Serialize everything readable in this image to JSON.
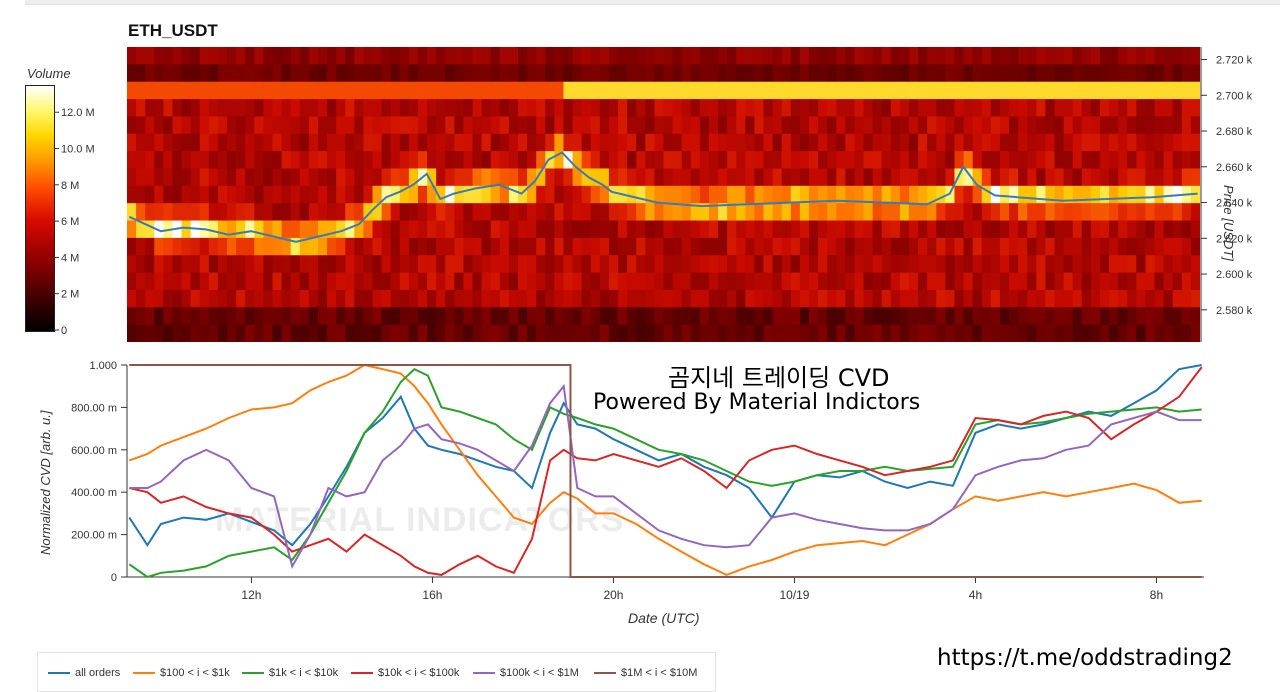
{
  "title": "ETH_USDT",
  "colorbar": {
    "title": "Volume",
    "ticks": [
      "0",
      "2 M",
      "4 M",
      "6 M",
      "8 M",
      "10.0 M",
      "12.0 M"
    ],
    "tick_values": [
      0,
      2,
      4,
      6,
      8,
      10,
      12
    ],
    "max": 13.5
  },
  "price_axis": {
    "label": "Price [USDT]",
    "ticks": [
      "2.580 k",
      "2.600 k",
      "2.620 k",
      "2.640 k",
      "2.660 k",
      "2.680 k",
      "2.700 k",
      "2.720 k"
    ],
    "tick_values": [
      2580,
      2600,
      2620,
      2640,
      2660,
      2680,
      2700,
      2720
    ],
    "range": [
      2562,
      2727
    ]
  },
  "cvd_axis": {
    "label": "Normalized CVD [arb. u.]",
    "ticks": [
      "0",
      "200.00 m",
      "400.00 m",
      "600.00 m",
      "800.00 m",
      "1.000"
    ],
    "tick_values": [
      0,
      0.2,
      0.4,
      0.6,
      0.8,
      1.0
    ]
  },
  "x_axis": {
    "label": "Date (UTC)",
    "ticks": [
      "12h",
      "16h",
      "20h",
      "10/19",
      "4h",
      "8h"
    ],
    "tick_hours": [
      12,
      16,
      20,
      24,
      28,
      32
    ],
    "range_hours": [
      9.25,
      33.05
    ]
  },
  "overlay": {
    "line1": "곰지네 트레이딩 CVD",
    "line2": "Powered By Material Indictors"
  },
  "watermark": "MATERIAL INDICATORS",
  "url": "https://t.me/oddstrading2",
  "legend": [
    {
      "name": "all orders",
      "color": "#1f77b4"
    },
    {
      "name": "$100 < i < $1k",
      "color": "#ff7f0e"
    },
    {
      "name": "$1k < i < $10k",
      "color": "#2ca02c"
    },
    {
      "name": "$10k < i < $100k",
      "color": "#d62728"
    },
    {
      "name": "$100k < i < $1M",
      "color": "#9467bd"
    },
    {
      "name": "$1M < i < $10M",
      "color": "#8c564b"
    }
  ],
  "chart_data": [
    {
      "type": "heatmap",
      "title": "ETH_USDT",
      "ylabel": "Price [USDT]",
      "ylim": [
        2562,
        2727
      ],
      "colorbar_label": "Volume",
      "price_line": {
        "color": "#3a7ab8",
        "x_hours": [
          9.3,
          10,
          10.5,
          11,
          11.5,
          12,
          12.5,
          13,
          13.5,
          14,
          14.4,
          14.7,
          15,
          15.3,
          15.6,
          15.9,
          16.2,
          16.5,
          17,
          17.5,
          18,
          18.3,
          18.6,
          18.9,
          19.2,
          19.5,
          19.8,
          20,
          21,
          22,
          23,
          24,
          25,
          26,
          27,
          27.5,
          27.8,
          28.1,
          28.5,
          29,
          30,
          31,
          32,
          33
        ],
        "price": [
          2632,
          2624,
          2626,
          2625,
          2622,
          2624,
          2621,
          2618,
          2621,
          2624,
          2628,
          2636,
          2643,
          2646,
          2650,
          2656,
          2642,
          2645,
          2648,
          2650,
          2645,
          2652,
          2664,
          2668,
          2660,
          2654,
          2650,
          2646,
          2640,
          2638,
          2639,
          2640,
          2641,
          2640,
          2639,
          2645,
          2660,
          2650,
          2644,
          2643,
          2641,
          2642,
          2643,
          2645
        ]
      },
      "high_volume_bands": [
        {
          "price_from": 2696,
          "price_to": 2706,
          "level": "high"
        },
        {
          "price_from": 2634,
          "price_to": 2646,
          "level": "very high"
        }
      ]
    },
    {
      "type": "line",
      "xlabel": "Date (UTC)",
      "ylabel": "Normalized CVD [arb. u.]",
      "ylim": [
        0,
        1
      ],
      "x_hours": [
        9.3,
        9.7,
        10,
        10.5,
        11,
        11.5,
        12,
        12.5,
        12.9,
        13.3,
        13.7,
        14.1,
        14.5,
        14.9,
        15.3,
        15.6,
        15.9,
        16.2,
        16.6,
        17,
        17.4,
        17.8,
        18.2,
        18.6,
        18.9,
        19.2,
        19.6,
        20,
        20.5,
        21,
        21.5,
        22,
        22.5,
        23,
        23.5,
        24,
        24.5,
        25,
        25.5,
        26,
        26.5,
        27,
        27.5,
        28,
        28.5,
        29,
        29.5,
        30,
        30.5,
        31,
        31.5,
        32,
        32.5,
        33
      ],
      "series": [
        {
          "name": "all orders",
          "values": [
            0.28,
            0.15,
            0.25,
            0.28,
            0.27,
            0.3,
            0.26,
            0.22,
            0.15,
            0.25,
            0.38,
            0.52,
            0.68,
            0.75,
            0.85,
            0.7,
            0.62,
            0.6,
            0.58,
            0.55,
            0.52,
            0.5,
            0.42,
            0.68,
            0.82,
            0.72,
            0.7,
            0.65,
            0.6,
            0.55,
            0.58,
            0.52,
            0.48,
            0.42,
            0.28,
            0.45,
            0.48,
            0.47,
            0.5,
            0.45,
            0.42,
            0.45,
            0.43,
            0.68,
            0.72,
            0.7,
            0.72,
            0.75,
            0.78,
            0.76,
            0.82,
            0.88,
            0.98,
            1.0
          ]
        },
        {
          "name": "$100 < i < $1k",
          "values": [
            0.55,
            0.58,
            0.62,
            0.66,
            0.7,
            0.75,
            0.79,
            0.8,
            0.82,
            0.88,
            0.92,
            0.95,
            1.0,
            0.98,
            0.96,
            0.9,
            0.82,
            0.72,
            0.6,
            0.48,
            0.38,
            0.28,
            0.25,
            0.35,
            0.4,
            0.37,
            0.3,
            0.3,
            0.25,
            0.18,
            0.12,
            0.06,
            0.01,
            0.05,
            0.08,
            0.12,
            0.15,
            0.16,
            0.17,
            0.15,
            0.2,
            0.25,
            0.32,
            0.38,
            0.36,
            0.38,
            0.4,
            0.38,
            0.4,
            0.42,
            0.44,
            0.41,
            0.35,
            0.36
          ]
        },
        {
          "name": "$1k < i < $10k",
          "values": [
            0.06,
            0.0,
            0.02,
            0.03,
            0.05,
            0.1,
            0.12,
            0.14,
            0.08,
            0.2,
            0.35,
            0.5,
            0.68,
            0.78,
            0.92,
            0.98,
            0.95,
            0.8,
            0.78,
            0.75,
            0.72,
            0.65,
            0.6,
            0.8,
            0.77,
            0.75,
            0.72,
            0.7,
            0.65,
            0.6,
            0.58,
            0.55,
            0.5,
            0.45,
            0.43,
            0.45,
            0.48,
            0.5,
            0.5,
            0.52,
            0.5,
            0.51,
            0.52,
            0.72,
            0.74,
            0.72,
            0.73,
            0.75,
            0.77,
            0.78,
            0.79,
            0.8,
            0.78,
            0.79
          ]
        },
        {
          "name": "$10k < i < $100k",
          "values": [
            0.42,
            0.4,
            0.35,
            0.38,
            0.33,
            0.3,
            0.28,
            0.2,
            0.12,
            0.15,
            0.18,
            0.12,
            0.2,
            0.15,
            0.1,
            0.05,
            0.02,
            0.01,
            0.06,
            0.1,
            0.05,
            0.02,
            0.18,
            0.55,
            0.6,
            0.56,
            0.55,
            0.58,
            0.55,
            0.52,
            0.56,
            0.5,
            0.42,
            0.55,
            0.6,
            0.62,
            0.58,
            0.55,
            0.52,
            0.48,
            0.5,
            0.52,
            0.55,
            0.75,
            0.74,
            0.72,
            0.76,
            0.78,
            0.75,
            0.65,
            0.72,
            0.78,
            0.85,
            0.99
          ]
        },
        {
          "name": "$100k < i < $1M",
          "values": [
            0.42,
            0.42,
            0.45,
            0.55,
            0.6,
            0.55,
            0.42,
            0.38,
            0.05,
            0.2,
            0.42,
            0.38,
            0.4,
            0.55,
            0.62,
            0.7,
            0.72,
            0.65,
            0.63,
            0.6,
            0.55,
            0.5,
            0.62,
            0.82,
            0.9,
            0.42,
            0.38,
            0.38,
            0.3,
            0.22,
            0.18,
            0.15,
            0.14,
            0.15,
            0.28,
            0.3,
            0.27,
            0.25,
            0.23,
            0.22,
            0.22,
            0.25,
            0.32,
            0.48,
            0.52,
            0.55,
            0.56,
            0.6,
            0.62,
            0.72,
            0.75,
            0.78,
            0.74,
            0.74
          ]
        },
        {
          "name": "$1M < i < $10M",
          "values": [
            1.0,
            1.0,
            1.0,
            1.0,
            1.0,
            1.0,
            1.0,
            1.0,
            1.0,
            1.0,
            1.0,
            1.0,
            1.0,
            1.0,
            1.0,
            1.0,
            1.0,
            1.0,
            1.0,
            1.0,
            1.0,
            1.0,
            1.0,
            1.0,
            1.0,
            0.0,
            0.0,
            0.0,
            0.0,
            0.0,
            0.0,
            0.0,
            0.0,
            0.0,
            0.0,
            0.0,
            0.0,
            0.0,
            0.0,
            0.0,
            0.0,
            0.0,
            0.0,
            0.0,
            0.0,
            0.0,
            0.0,
            0.0,
            0.0,
            0.0,
            0.0,
            0.0,
            0.0,
            0.0
          ]
        }
      ]
    }
  ]
}
